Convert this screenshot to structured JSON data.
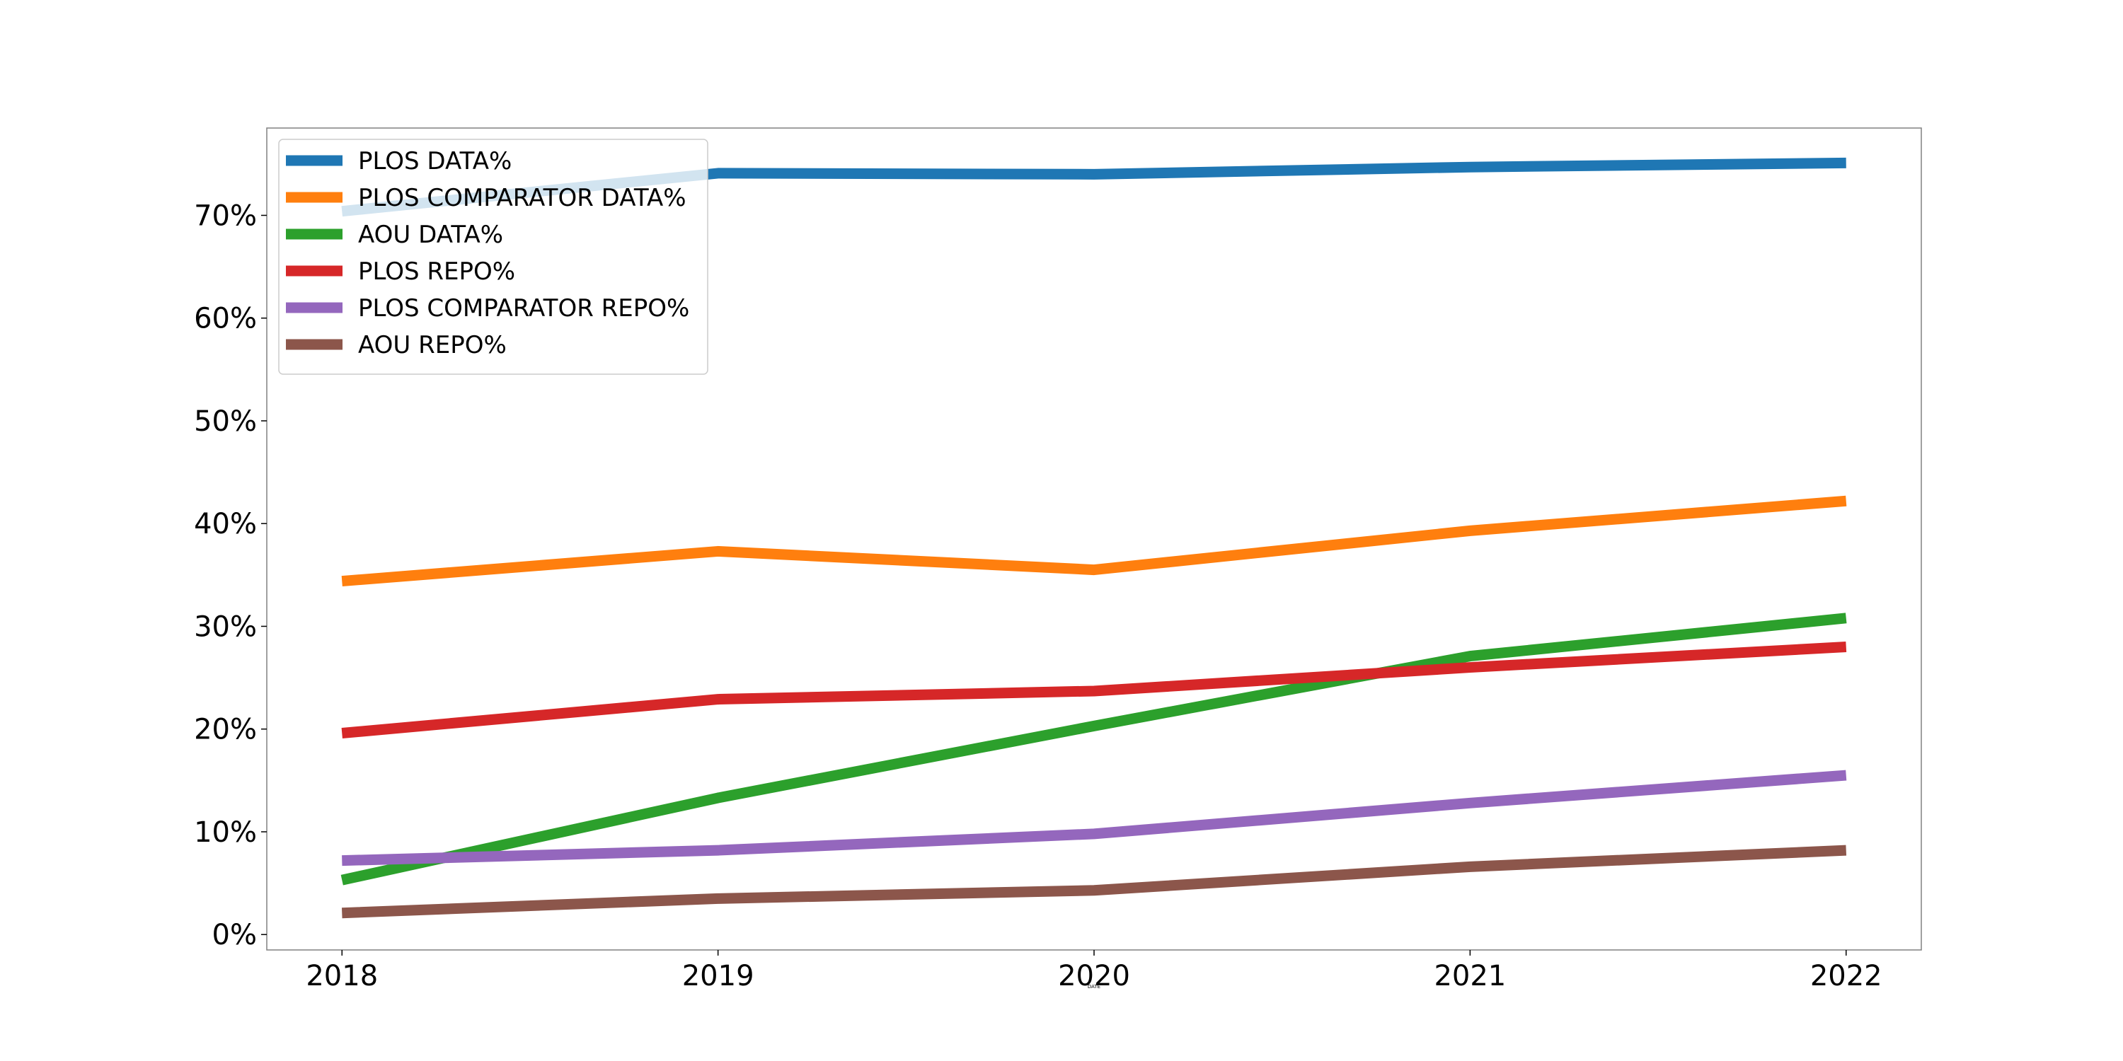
{
  "chart_data": {
    "type": "line",
    "x": [
      2018,
      2019,
      2020,
      2021,
      2022
    ],
    "xlabel": "DATE",
    "ylabel": "",
    "ylim": [
      -1.5,
      78.5
    ],
    "yticks": [
      "0%",
      "10%",
      "20%",
      "30%",
      "40%",
      "50%",
      "60%",
      "70%"
    ],
    "ytick_values": [
      0,
      10,
      20,
      30,
      40,
      50,
      60,
      70
    ],
    "grid": false,
    "legend_position": "upper-left",
    "series": [
      {
        "name": "PLOS DATA%",
        "color": "#1f77b4",
        "values": [
          70.4,
          74.1,
          74.0,
          74.7,
          75.1
        ]
      },
      {
        "name": "PLOS COMPARATOR DATA%",
        "color": "#ff7f0e",
        "values": [
          34.4,
          37.3,
          35.5,
          39.3,
          42.2
        ]
      },
      {
        "name": "AOU DATA%",
        "color": "#2ca02c",
        "values": [
          5.3,
          13.3,
          20.3,
          27.1,
          30.8
        ]
      },
      {
        "name": "PLOS REPO%",
        "color": "#d62728",
        "values": [
          19.6,
          22.9,
          23.7,
          26.0,
          28.0
        ]
      },
      {
        "name": "PLOS COMPARATOR REPO%",
        "color": "#9467bd",
        "values": [
          7.2,
          8.2,
          9.8,
          12.8,
          15.5
        ]
      },
      {
        "name": "AOU REPO%",
        "color": "#8c564b",
        "values": [
          2.1,
          3.5,
          4.3,
          6.6,
          8.2
        ]
      }
    ]
  }
}
